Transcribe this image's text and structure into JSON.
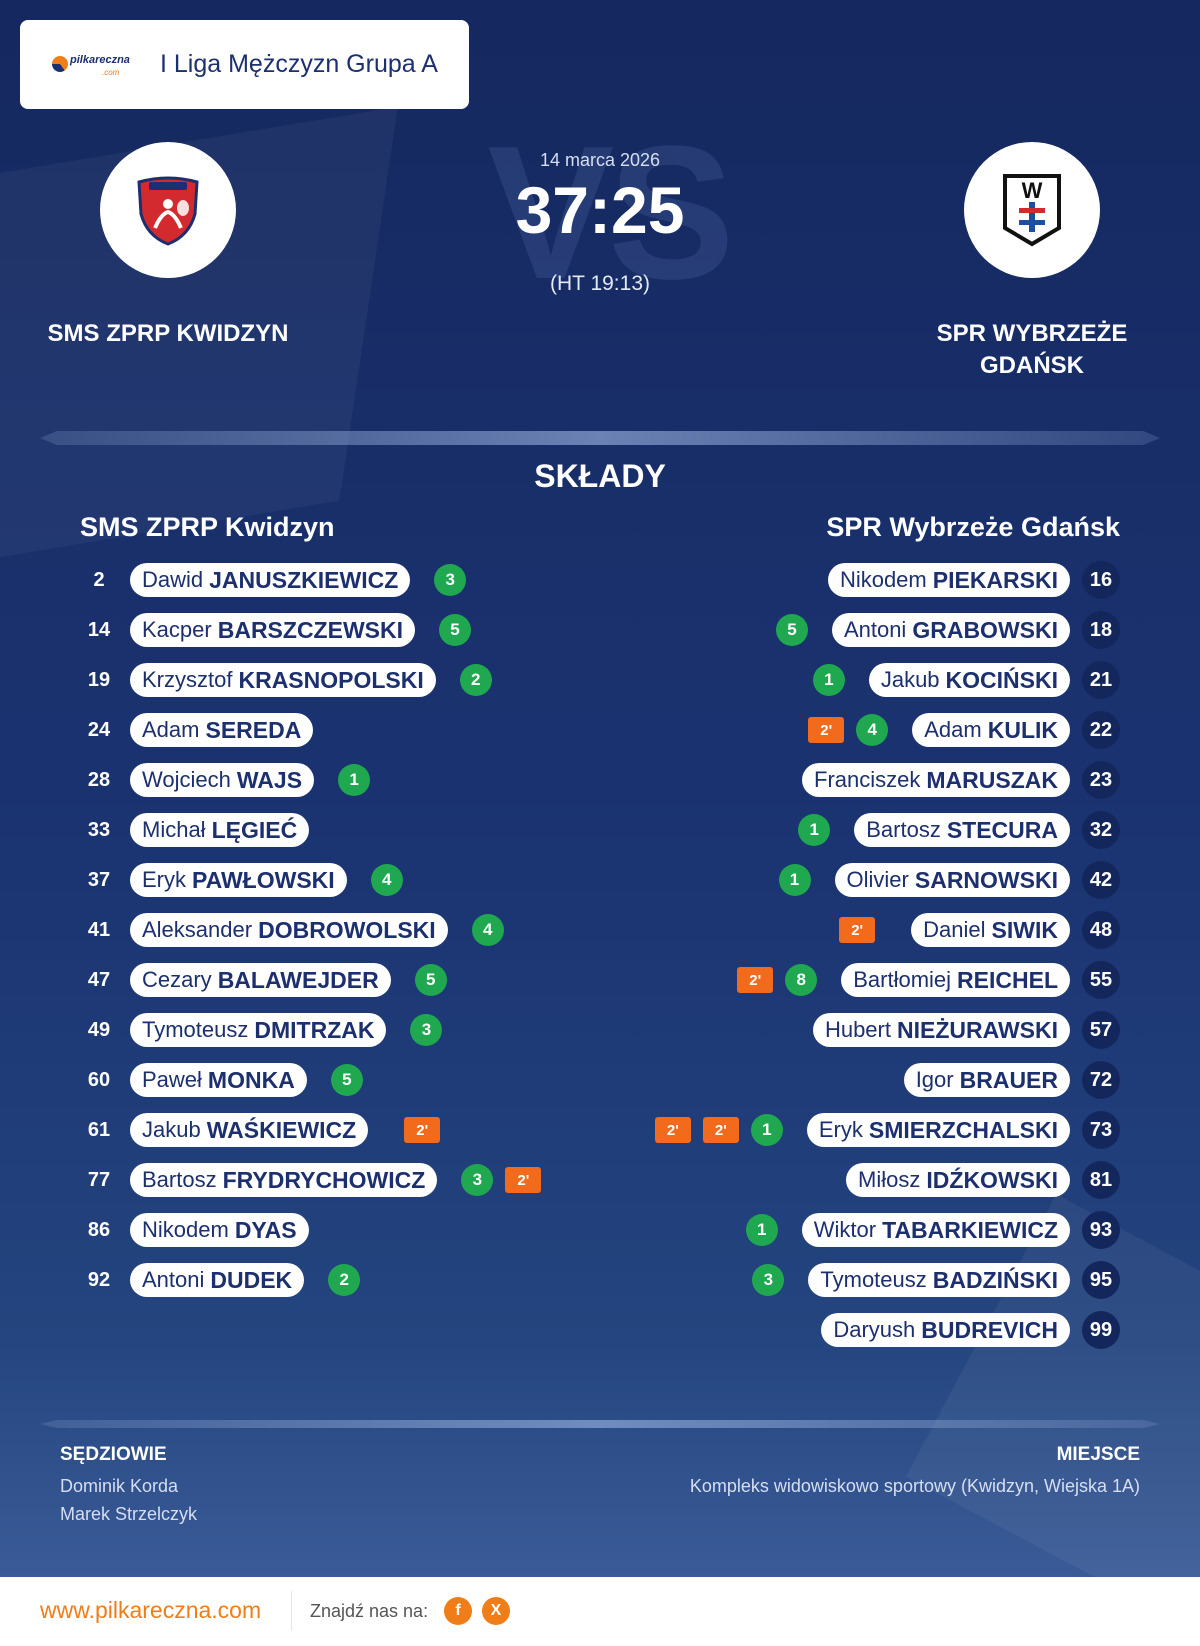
{
  "league": {
    "title": "I Liga Mężczyzn Grupa A",
    "logo_text": "pilkareczna",
    "logo_domain": ".com"
  },
  "match": {
    "date": "14 marca 2026",
    "score": "37:25",
    "half_time": "(HT 19:13)",
    "vs": "VS"
  },
  "home_team": {
    "name": "SMS ZPRP KWIDZYN",
    "lineup_title": "SMS ZPRP Kwidzyn",
    "number_color": "#1c2f6e"
  },
  "away_team": {
    "name_line1": "SPR WYBRZEŻE",
    "name_line2": "GDAŃSK",
    "lineup_title": "SPR Wybrzeże Gdańsk",
    "logo_letter": "W"
  },
  "lineups_title": "SKŁADY",
  "home_players": [
    {
      "number": "2",
      "first": "Dawid",
      "last": "JANUSZKIEWICZ",
      "goals": "3",
      "suspensions": []
    },
    {
      "number": "14",
      "first": "Kacper",
      "last": "BARSZCZEWSKI",
      "goals": "5",
      "suspensions": []
    },
    {
      "number": "19",
      "first": "Krzysztof",
      "last": "KRASNOPOLSKI",
      "goals": "2",
      "suspensions": []
    },
    {
      "number": "24",
      "first": "Adam",
      "last": "SEREDA",
      "goals": "",
      "suspensions": []
    },
    {
      "number": "28",
      "first": "Wojciech",
      "last": "WAJS",
      "goals": "1",
      "suspensions": []
    },
    {
      "number": "33",
      "first": "Michał",
      "last": "LĘGIEĆ",
      "goals": "",
      "suspensions": []
    },
    {
      "number": "37",
      "first": "Eryk",
      "last": "PAWŁOWSKI",
      "goals": "4",
      "suspensions": []
    },
    {
      "number": "41",
      "first": "Aleksander",
      "last": "DOBROWOLSKI",
      "goals": "4",
      "suspensions": []
    },
    {
      "number": "47",
      "first": "Cezary",
      "last": "BALAWEJDER",
      "goals": "5",
      "suspensions": []
    },
    {
      "number": "49",
      "first": "Tymoteusz",
      "last": "DMITRZAK",
      "goals": "3",
      "suspensions": []
    },
    {
      "number": "60",
      "first": "Paweł",
      "last": "MONKA",
      "goals": "5",
      "suspensions": []
    },
    {
      "number": "61",
      "first": "Jakub",
      "last": "WAŚKIEWICZ",
      "goals": "",
      "suspensions": [
        "2'"
      ]
    },
    {
      "number": "77",
      "first": "Bartosz",
      "last": "FRYDRYCHOWICZ",
      "goals": "3",
      "suspensions": [
        "2'"
      ]
    },
    {
      "number": "86",
      "first": "Nikodem",
      "last": "DYAS",
      "goals": "",
      "suspensions": []
    },
    {
      "number": "92",
      "first": "Antoni",
      "last": "DUDEK",
      "goals": "2",
      "suspensions": []
    }
  ],
  "away_players": [
    {
      "number": "16",
      "first": "Nikodem",
      "last": "PIEKARSKI",
      "goals": "",
      "suspensions": []
    },
    {
      "number": "18",
      "first": "Antoni",
      "last": "GRABOWSKI",
      "goals": "5",
      "suspensions": []
    },
    {
      "number": "21",
      "first": "Jakub",
      "last": "KOCIŃSKI",
      "goals": "1",
      "suspensions": []
    },
    {
      "number": "22",
      "first": "Adam",
      "last": "KULIK",
      "goals": "4",
      "suspensions": [
        "2'"
      ]
    },
    {
      "number": "23",
      "first": "Franciszek",
      "last": "MARUSZAK",
      "goals": "",
      "suspensions": []
    },
    {
      "number": "32",
      "first": "Bartosz",
      "last": "STECURA",
      "goals": "1",
      "suspensions": []
    },
    {
      "number": "42",
      "first": "Olivier",
      "last": "SARNOWSKI",
      "goals": "1",
      "suspensions": []
    },
    {
      "number": "48",
      "first": "Daniel",
      "last": "SIWIK",
      "goals": "",
      "suspensions": [
        "2'"
      ]
    },
    {
      "number": "55",
      "first": "Bartłomiej",
      "last": "REICHEL",
      "goals": "8",
      "suspensions": [
        "2'"
      ]
    },
    {
      "number": "57",
      "first": "Hubert",
      "last": "NIEŻURAWSKI",
      "goals": "",
      "suspensions": []
    },
    {
      "number": "72",
      "first": "Igor",
      "last": "BRAUER",
      "goals": "",
      "suspensions": []
    },
    {
      "number": "73",
      "first": "Eryk",
      "last": "SMIERZCHALSKI",
      "goals": "1",
      "suspensions": [
        "2'",
        "2'"
      ]
    },
    {
      "number": "81",
      "first": "Miłosz",
      "last": "IDŹKOWSKI",
      "goals": "",
      "suspensions": []
    },
    {
      "number": "93",
      "first": "Wiktor",
      "last": "TABARKIEWICZ",
      "goals": "1",
      "suspensions": []
    },
    {
      "number": "95",
      "first": "Tymoteusz",
      "last": "BADZIŃSKI",
      "goals": "3",
      "suspensions": []
    },
    {
      "number": "99",
      "first": "Daryush",
      "last": "BUDREVICH",
      "goals": "",
      "suspensions": []
    }
  ],
  "referees": {
    "title": "SĘDZIOWIE",
    "names": [
      "Dominik Korda",
      "Marek Strzelczyk"
    ]
  },
  "venue": {
    "title": "MIEJSCE",
    "name": "Kompleks widowiskowo sportowy (Kwidzyn, Wiejska 1A)"
  },
  "footer": {
    "url": "www.pilkareczna.com",
    "find_us": "Znajdź nas na:",
    "facebook": "f",
    "x": "X"
  },
  "colors": {
    "goal": "#1fa84f",
    "suspension": "#f26b1d",
    "accent": "#f07d18",
    "primary": "#1c2f6e"
  },
  "icons": {
    "home_logo": "kwidzyn-shield-icon",
    "away_logo": "wybrzeze-shield-icon",
    "facebook": "facebook-icon",
    "x": "x-icon"
  }
}
